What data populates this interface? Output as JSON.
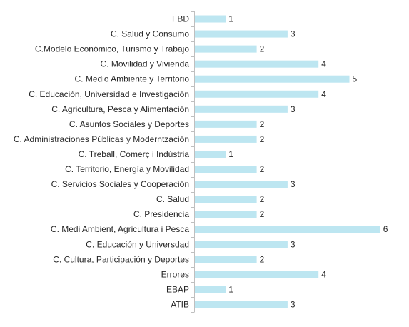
{
  "chart_data": {
    "type": "bar",
    "orientation": "horizontal",
    "title": "",
    "xlabel": "",
    "ylabel": "",
    "xlim": [
      0,
      6
    ],
    "grid": false,
    "legend": "none",
    "bar_color": "#BDE6F1",
    "categories": [
      "FBD",
      "C. Salud y Consumo",
      "C.Modelo Económico, Turismo y Trabajo",
      "C. Movilidad y Vivienda",
      "C. Medio Ambiente y Territorio",
      "C. Educación, Universidad e Investigación",
      "C. Agricultura, Pesca y Alimentación",
      "C. Asuntos Sociales y Deportes",
      "C. Administraciones Públicas y Moderntzación",
      "C. Treball, Comerç i Indústria",
      "C. Territorio, Energía y Movilidad",
      "C. Servicios Sociales y Cooperación",
      "C. Salud",
      "C. Presidencia",
      "C. Medi Ambient, Agricultura i Pesca",
      "C. Educación y Universdad",
      "C. Cultura, Participación y Deportes",
      "Errores",
      "EBAP",
      "ATIB"
    ],
    "values": [
      1,
      3,
      2,
      4,
      5,
      4,
      3,
      2,
      2,
      1,
      2,
      3,
      2,
      2,
      6,
      3,
      2,
      4,
      1,
      3
    ]
  }
}
